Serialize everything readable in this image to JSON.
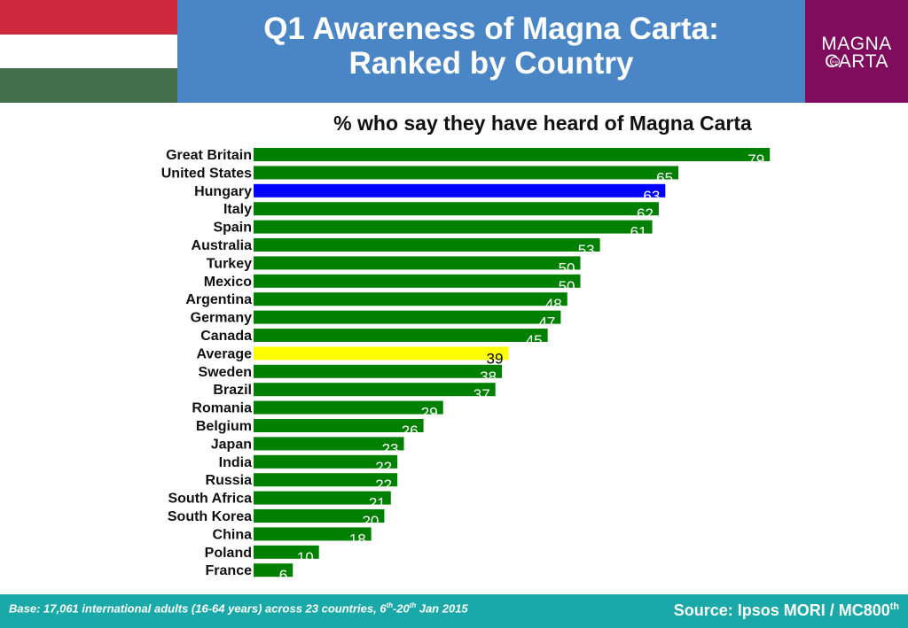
{
  "header": {
    "title_line1": "Q1 Awareness of Magna Carta:",
    "title_line2": "Ranked by Country"
  },
  "flag": {
    "name": "hungary-flag",
    "colors": [
      "#cd2a3e",
      "#ffffff",
      "#436f4d"
    ]
  },
  "logo": {
    "line1": "MAGNA",
    "line2": "CARTA",
    "mark": "800"
  },
  "colors": {
    "header_bg": "#4a86c5",
    "logo_bg": "#800c5e",
    "footer_bg": "#1aa9a8",
    "bar_default": "#008000",
    "bar_highlight": "#0000ff",
    "bar_average": "#ffff00"
  },
  "chart_data": {
    "type": "bar",
    "orientation": "horizontal",
    "title": "% who say they have heard of Magna Carta",
    "categories": [
      "Great Britain",
      "United States",
      "Hungary",
      "Italy",
      "Spain",
      "Australia",
      "Turkey",
      "Mexico",
      "Argentina",
      "Germany",
      "Canada",
      "Average",
      "Sweden",
      "Brazil",
      "Romania",
      "Belgium",
      "Japan",
      "India",
      "Russia",
      "South Africa",
      "South Korea",
      "China",
      "Poland",
      "France"
    ],
    "values": [
      79,
      65,
      63,
      62,
      61,
      53,
      50,
      50,
      48,
      47,
      45,
      39,
      38,
      37,
      29,
      26,
      23,
      22,
      22,
      21,
      20,
      18,
      10,
      6
    ],
    "highlight": {
      "Hungary": "blue",
      "Average": "yellow"
    },
    "xlim": [
      0,
      100
    ],
    "grid": false,
    "data_labels": true
  },
  "footer": {
    "base_pre": "Base: 17,061 international adults (16-64 years) across 23 countries, 6",
    "base_sup1": "th",
    "base_mid": "-20",
    "base_sup2": "th",
    "base_post": " Jan 2015",
    "source_text": "Source: Ipsos MORI / MC800",
    "source_sup": "th"
  }
}
